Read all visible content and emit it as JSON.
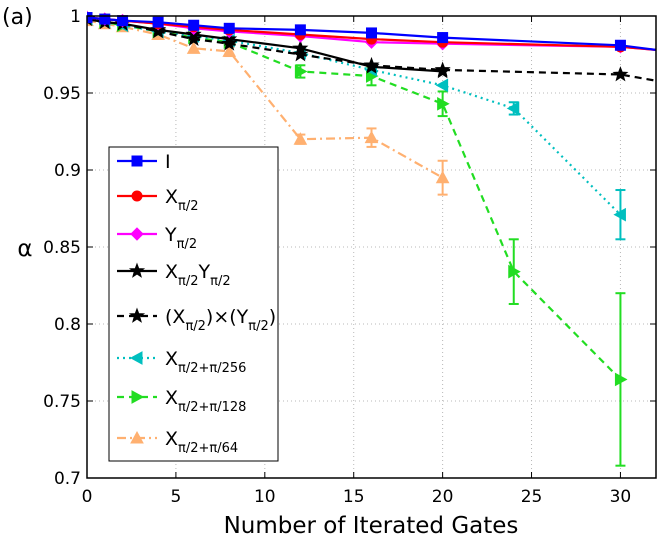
{
  "panel_label": "(a)",
  "colors": {
    "I": "#0000ff",
    "X_pi_2": "#ff0000",
    "Y_pi_2": "#ff00ff",
    "XY": "#000000",
    "XxY": "#000000",
    "X256": "#00bfbf",
    "X128": "#22dd22",
    "X64": "#ffb070"
  },
  "chart_data": {
    "type": "line",
    "xlabel": "Number of Iterated Gates",
    "ylabel": "α",
    "xlim": [
      0,
      32
    ],
    "ylim": [
      0.7,
      1.0
    ],
    "xticks": [
      0,
      5,
      10,
      15,
      20,
      25,
      30
    ],
    "yticks": [
      0.7,
      0.75,
      0.8,
      0.85,
      0.9,
      0.95,
      1
    ],
    "xtick_labels": [
      "0",
      "5",
      "10",
      "15",
      "20",
      "25",
      "30"
    ],
    "ytick_labels": [
      "0.7",
      "0.75",
      "0.8",
      "0.85",
      "0.9",
      "0.95",
      "1"
    ],
    "grid": true,
    "legend_position": "left",
    "series": [
      {
        "key": "I",
        "legend": {
          "main": "I",
          "sub": "",
          "main2": "",
          "sub2": ""
        },
        "marker": "square",
        "linestyle": "solid",
        "x": [
          0,
          1,
          2,
          4,
          6,
          8,
          12,
          16,
          20,
          30,
          32
        ],
        "y": [
          0.999,
          0.998,
          0.997,
          0.996,
          0.994,
          0.992,
          0.991,
          0.989,
          0.986,
          0.981,
          0.978
        ],
        "err": []
      },
      {
        "key": "X_pi_2",
        "legend": {
          "main": "X",
          "sub": "π/2",
          "main2": "",
          "sub2": ""
        },
        "marker": "circle",
        "linestyle": "solid",
        "x": [
          0,
          1,
          2,
          4,
          6,
          8,
          12,
          16,
          20,
          30,
          32
        ],
        "y": [
          0.999,
          0.998,
          0.997,
          0.995,
          0.993,
          0.991,
          0.988,
          0.985,
          0.983,
          0.98,
          0.978
        ],
        "err": []
      },
      {
        "key": "Y_pi_2",
        "legend": {
          "main": "Y",
          "sub": "π/2",
          "main2": "",
          "sub2": ""
        },
        "marker": "diamond",
        "linestyle": "solid",
        "x": [
          0,
          1,
          2,
          4,
          6,
          8,
          12,
          16,
          20,
          30,
          32
        ],
        "y": [
          0.999,
          0.998,
          0.997,
          0.995,
          0.992,
          0.99,
          0.987,
          0.983,
          0.982,
          0.98,
          0.978
        ],
        "err": []
      },
      {
        "key": "XY",
        "legend": {
          "main": "X",
          "sub": "π/2",
          "main2": "Y",
          "sub2": "π/2"
        },
        "marker": "star",
        "linestyle": "solid",
        "x": [
          0,
          1,
          2,
          4,
          6,
          8,
          12,
          16,
          20
        ],
        "y": [
          0.998,
          0.996,
          0.995,
          0.991,
          0.988,
          0.985,
          0.979,
          0.967,
          0.964
        ],
        "err": []
      },
      {
        "key": "XxY",
        "legend": {
          "main": "(X",
          "sub": "π/2",
          "main2": ")×(Y",
          "sub2": "π/2",
          "tail": ")"
        },
        "marker": "star",
        "linestyle": "dashed",
        "x": [
          0,
          1,
          2,
          4,
          6,
          8,
          12,
          16,
          20,
          30,
          32
        ],
        "y": [
          0.998,
          0.996,
          0.995,
          0.99,
          0.985,
          0.982,
          0.975,
          0.968,
          0.965,
          0.962,
          0.958
        ],
        "err": []
      },
      {
        "key": "X256",
        "legend": {
          "main": "X",
          "sub": "π/2+π/256",
          "main2": "",
          "sub2": ""
        },
        "marker": "triangle-left",
        "linestyle": "dotted",
        "x": [
          0,
          1,
          2,
          4,
          6,
          8,
          12,
          16,
          20,
          24,
          30
        ],
        "y": [
          0.998,
          0.996,
          0.994,
          0.99,
          0.987,
          0.984,
          0.976,
          0.965,
          0.955,
          0.94,
          0.871
        ],
        "err": [
          0,
          0,
          0,
          0,
          0,
          0,
          0,
          0,
          0,
          0.004,
          0.016
        ]
      },
      {
        "key": "X128",
        "legend": {
          "main": "X",
          "sub": "π/2+π/128",
          "main2": "",
          "sub2": ""
        },
        "marker": "triangle-right",
        "linestyle": "dashed",
        "x": [
          0,
          1,
          2,
          4,
          6,
          8,
          12,
          16,
          20,
          24,
          30
        ],
        "y": [
          0.998,
          0.996,
          0.994,
          0.99,
          0.986,
          0.983,
          0.964,
          0.961,
          0.943,
          0.834,
          0.764
        ],
        "err": [
          0,
          0,
          0,
          0,
          0,
          0,
          0.004,
          0.006,
          0.008,
          0.021,
          0.056
        ]
      },
      {
        "key": "X64",
        "legend": {
          "main": "X",
          "sub": "π/2+π/64",
          "main2": "",
          "sub2": ""
        },
        "marker": "triangle-up",
        "linestyle": "dashdot",
        "x": [
          0,
          1,
          2,
          4,
          6,
          8,
          12,
          16,
          20
        ],
        "y": [
          0.997,
          0.995,
          0.993,
          0.988,
          0.979,
          0.977,
          0.92,
          0.921,
          0.895
        ],
        "err": [
          0,
          0,
          0,
          0,
          0,
          0.003,
          0.003,
          0.006,
          0.011
        ]
      }
    ]
  }
}
